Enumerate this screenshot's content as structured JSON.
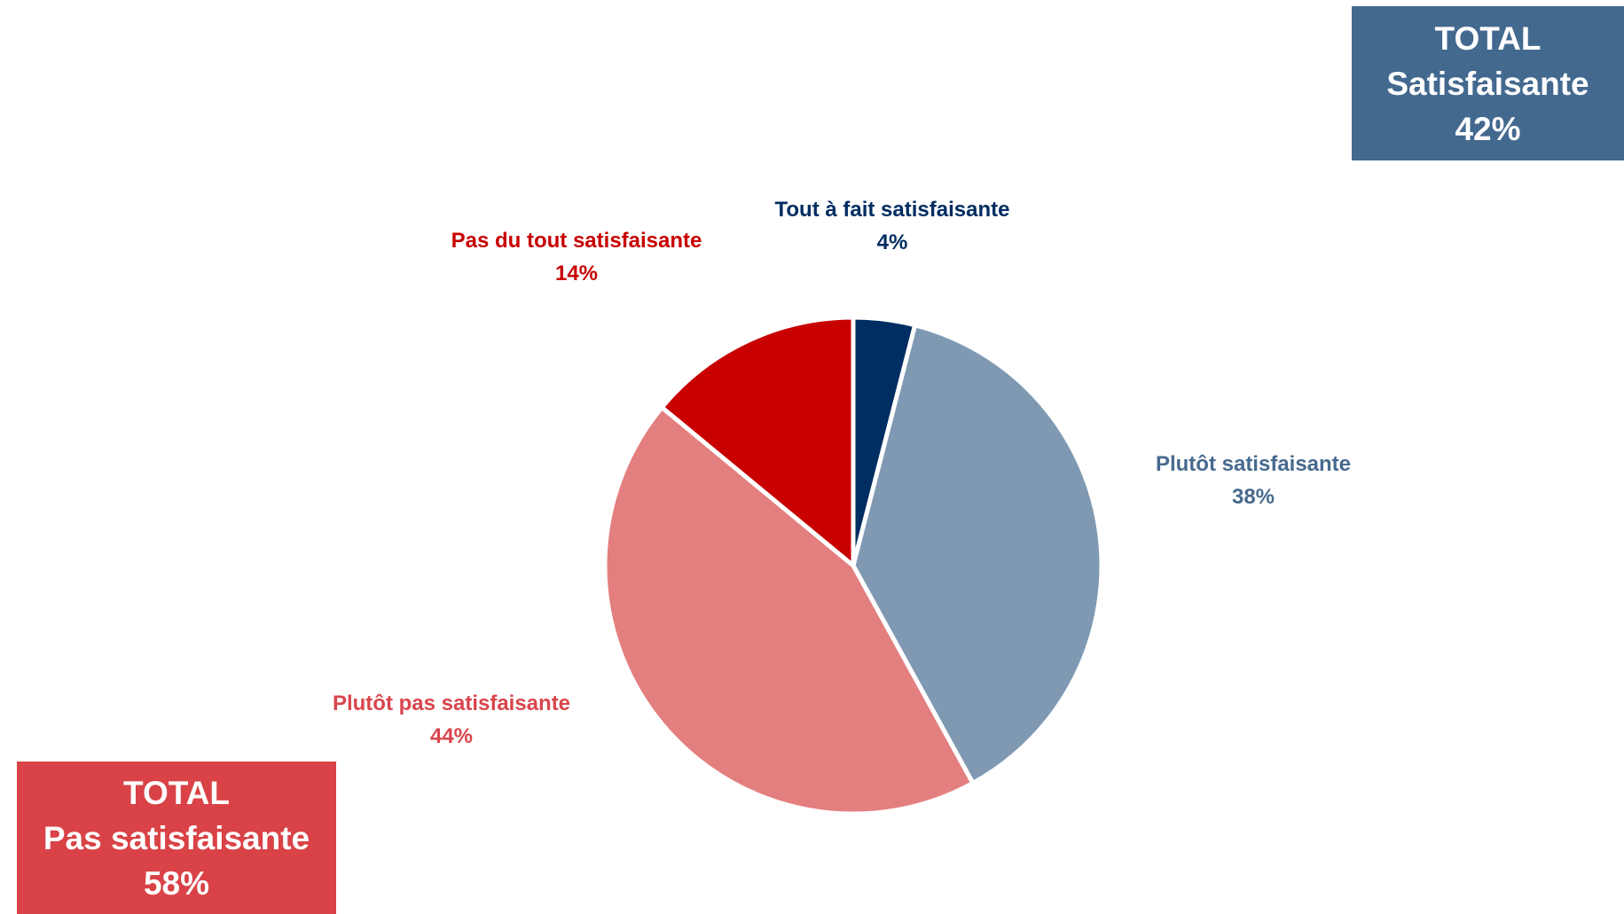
{
  "chart_data": {
    "type": "pie",
    "start_angle_deg": 0,
    "direction": "clockwise",
    "slices": [
      {
        "label": "Tout à fait satisfaisante",
        "value": 4,
        "value_label": "4%",
        "color": "#002d62",
        "label_color": "#002d62"
      },
      {
        "label": "Plutôt satisfaisante",
        "value": 38,
        "value_label": "38%",
        "color": "#7f99b3",
        "label_color": "#476a8e"
      },
      {
        "label": "Plutôt pas satisfaisante",
        "value": 44,
        "value_label": "44%",
        "color": "#e47f7f",
        "label_color": "#d9454c"
      },
      {
        "label": "Pas du tout satisfaisante",
        "value": 14,
        "value_label": "14%",
        "color": "#c80000",
        "label_color": "#c80000"
      }
    ]
  },
  "totals": {
    "satisfaisante": {
      "line1": "TOTAL",
      "line2": "Satisfaisante",
      "line3": "42%",
      "value": 42,
      "color": "#43698f"
    },
    "pas_satisfaisante": {
      "line1": "TOTAL",
      "line2": "Pas satisfaisante",
      "line3": "58%",
      "value": 58,
      "color": "#d94246"
    }
  }
}
